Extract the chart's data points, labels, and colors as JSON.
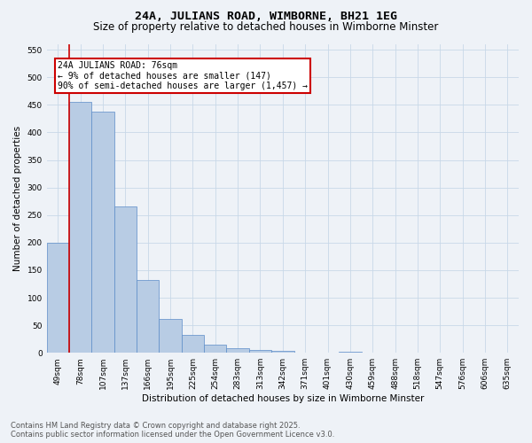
{
  "title": "24A, JULIANS ROAD, WIMBORNE, BH21 1EG",
  "subtitle": "Size of property relative to detached houses in Wimborne Minster",
  "xlabel": "Distribution of detached houses by size in Wimborne Minster",
  "ylabel": "Number of detached properties",
  "categories": [
    "49sqm",
    "78sqm",
    "107sqm",
    "137sqm",
    "166sqm",
    "195sqm",
    "225sqm",
    "254sqm",
    "283sqm",
    "313sqm",
    "342sqm",
    "371sqm",
    "401sqm",
    "430sqm",
    "459sqm",
    "488sqm",
    "518sqm",
    "547sqm",
    "576sqm",
    "606sqm",
    "635sqm"
  ],
  "values": [
    200,
    455,
    438,
    265,
    132,
    62,
    32,
    15,
    8,
    5,
    4,
    0,
    0,
    2,
    0,
    0,
    0,
    0,
    0,
    0,
    1
  ],
  "bar_color": "#b8cce4",
  "bar_edge_color": "#5b8cc8",
  "marker_color": "#cc0000",
  "annotation_text": "24A JULIANS ROAD: 76sqm\n← 9% of detached houses are smaller (147)\n90% of semi-detached houses are larger (1,457) →",
  "annotation_box_color": "#ffffff",
  "annotation_box_edge": "#cc0000",
  "ylim": [
    0,
    560
  ],
  "yticks": [
    0,
    50,
    100,
    150,
    200,
    250,
    300,
    350,
    400,
    450,
    500,
    550
  ],
  "grid_color": "#c8d8e8",
  "background_color": "#eef2f7",
  "footer": "Contains HM Land Registry data © Crown copyright and database right 2025.\nContains public sector information licensed under the Open Government Licence v3.0.",
  "title_fontsize": 9.5,
  "subtitle_fontsize": 8.5,
  "xlabel_fontsize": 7.5,
  "ylabel_fontsize": 7.5,
  "tick_fontsize": 6.5,
  "annotation_fontsize": 7.0,
  "footer_fontsize": 6.0
}
